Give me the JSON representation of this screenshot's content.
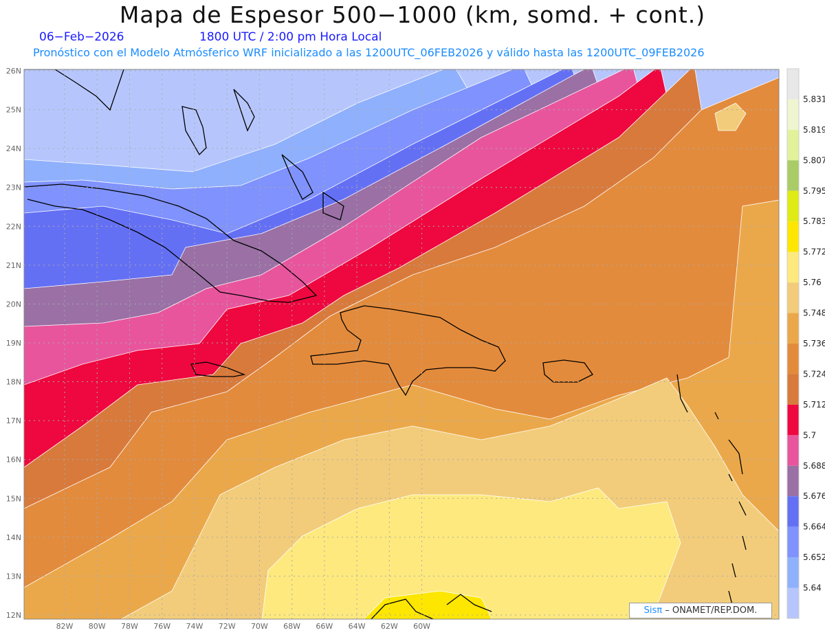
{
  "header": {
    "title": "Mapa de Espesor 500−1000 (km, somd. + cont.)",
    "date": "06−Feb−2026",
    "time": "1800 UTC / 2:00 pm Hora Local",
    "description": "Pronóstico con el Modelo Atmósferico WRF inicializado a las 1200UTC_06FEB2026 y válido hasta las  1200UTC_09FEB2026"
  },
  "map": {
    "lon_labels": [
      "82W",
      "80W",
      "78W",
      "76W",
      "74W",
      "72W",
      "70W",
      "68W",
      "66W",
      "64W",
      "62W",
      "60W"
    ],
    "lat_labels": [
      "26N",
      "25N",
      "24N",
      "23N",
      "22N",
      "21N",
      "20N",
      "19N",
      "18N",
      "17N",
      "16N",
      "15N",
      "14N",
      "13N",
      "12N"
    ]
  },
  "colorbar": {
    "labels": [
      "5.831",
      "5.819",
      "5.807",
      "5.795",
      "5.783",
      "5.772",
      "5.76",
      "5.748",
      "5.736",
      "5.724",
      "5.712",
      "5.7",
      "5.688",
      "5.676",
      "5.664",
      "5.652",
      "5.64"
    ],
    "colors": [
      "#e8e8e8",
      "#eef5d0",
      "#e2f29a",
      "#a9cc66",
      "#e0ea14",
      "#fde600",
      "#fde97e",
      "#f2cc7a",
      "#eba84a",
      "#e38b3c",
      "#d87a3c",
      "#ee083f",
      "#e8559d",
      "#9a70a5",
      "#6470f4",
      "#7f92fd",
      "#8fb0fd",
      "#b6c6fd"
    ]
  },
  "logo": {
    "brand": "Sisπ",
    "text": "– ONAMET/REP.DOM."
  }
}
